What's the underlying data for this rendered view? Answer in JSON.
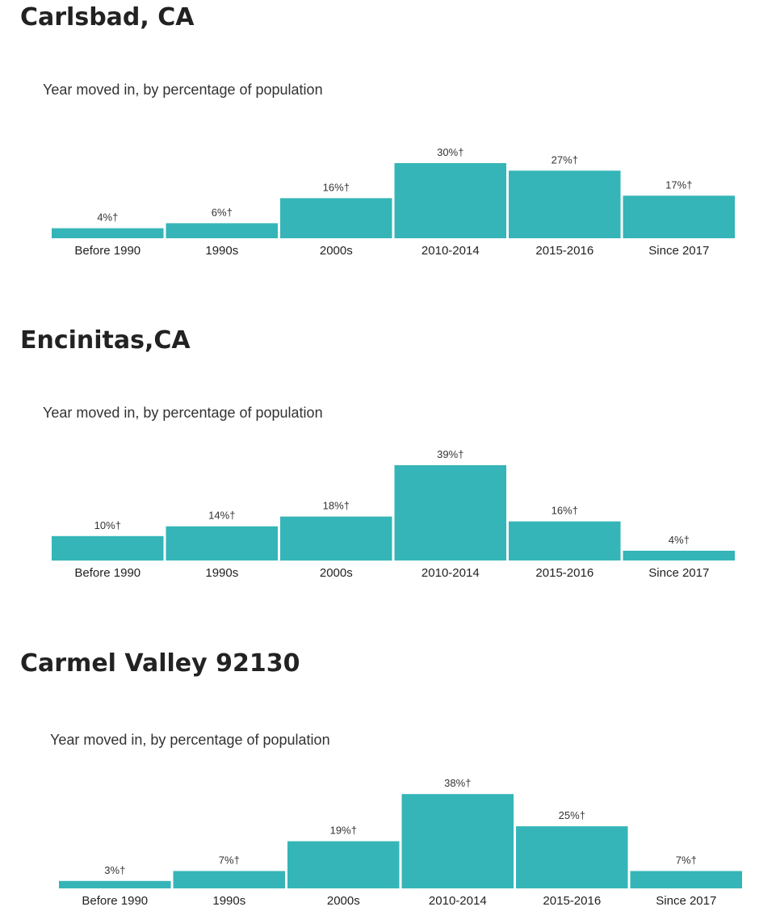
{
  "colors": {
    "bar": "#35b5b7",
    "text": "#222222"
  },
  "sections": [
    {
      "title": "Carlsbad, CA",
      "subtitle": "Year moved in, by percentage of population"
    },
    {
      "title": "Encinitas,CA",
      "subtitle": "Year moved in, by percentage of population"
    },
    {
      "title": "Carmel Valley 92130",
      "subtitle": "Year moved in, by percentage of population"
    }
  ],
  "chart_data": [
    {
      "type": "bar",
      "title": "Year moved in, by percentage of population",
      "categories": [
        "Before 1990",
        "1990s",
        "2000s",
        "2010-2014",
        "2015-2016",
        "Since 2017"
      ],
      "values": [
        4,
        6,
        16,
        30,
        27,
        17
      ],
      "labels": [
        "4%†",
        "6%†",
        "16%†",
        "30%†",
        "27%†",
        "17%†"
      ],
      "ylim": [
        0,
        40
      ],
      "grid": false,
      "legend": "none"
    },
    {
      "type": "bar",
      "title": "Year moved in, by percentage of population",
      "categories": [
        "Before 1990",
        "1990s",
        "2000s",
        "2010-2014",
        "2015-2016",
        "Since 2017"
      ],
      "values": [
        10,
        14,
        18,
        39,
        16,
        4
      ],
      "labels": [
        "10%†",
        "14%†",
        "18%†",
        "39%†",
        "16%†",
        "4%†"
      ],
      "ylim": [
        0,
        40
      ],
      "grid": false,
      "legend": "none"
    },
    {
      "type": "bar",
      "title": "Year moved in, by percentage of population",
      "categories": [
        "Before 1990",
        "1990s",
        "2000s",
        "2010-2014",
        "2015-2016",
        "Since 2017"
      ],
      "values": [
        3,
        7,
        19,
        38,
        25,
        7
      ],
      "labels": [
        "3%†",
        "7%†",
        "19%†",
        "38%†",
        "25%†",
        "7%†"
      ],
      "ylim": [
        0,
        40
      ],
      "grid": false,
      "legend": "none"
    }
  ]
}
